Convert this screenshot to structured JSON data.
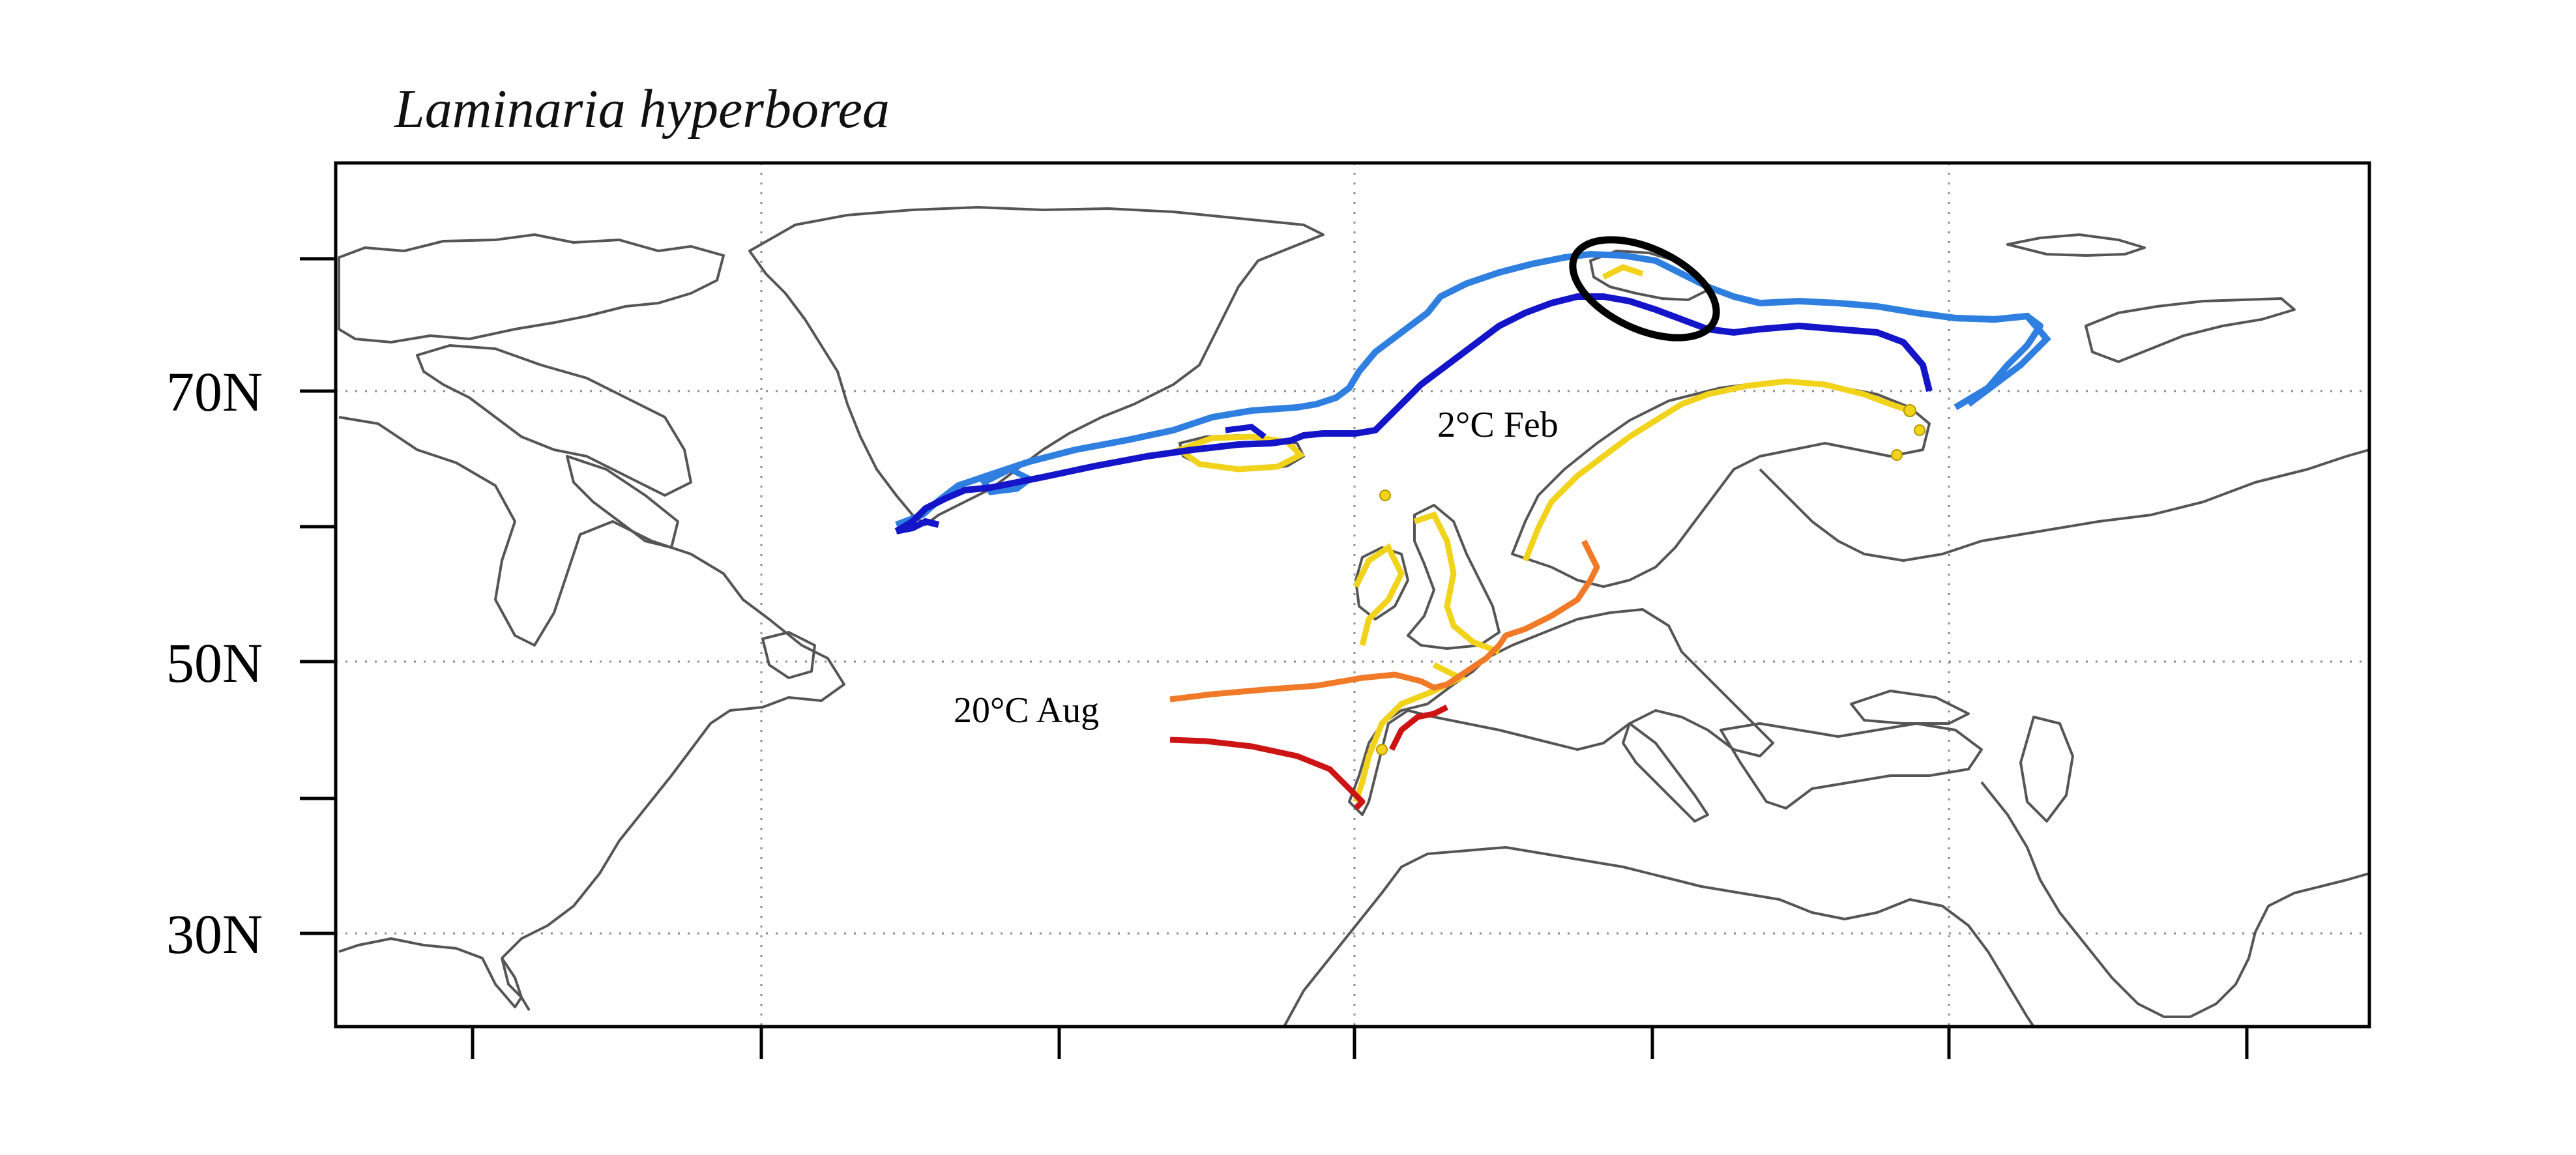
{
  "figure": {
    "title": "Laminaria hyperborea",
    "y_axis": {
      "labels": [
        "70N",
        "50N",
        "30N"
      ]
    },
    "annotations": {
      "winter_isotherm": "2°C Feb",
      "summer_isotherm": "20°C Aug"
    },
    "colors": {
      "coastline": "#555555",
      "occurrence": "#F2D31B",
      "isotherm_2C_present": "#2E7FE0",
      "isotherm_2C_future": "#1414C8",
      "isotherm_20C_present": "#F07A28",
      "isotherm_20C_future": "#CC1414",
      "highlight_ellipse": "#000000"
    },
    "features": [
      "coastline",
      "gridlines",
      "species-occurrence-points",
      "2C-february-isotherm-lines",
      "20C-august-isotherm-lines",
      "svalbard-highlight-ellipse"
    ]
  }
}
